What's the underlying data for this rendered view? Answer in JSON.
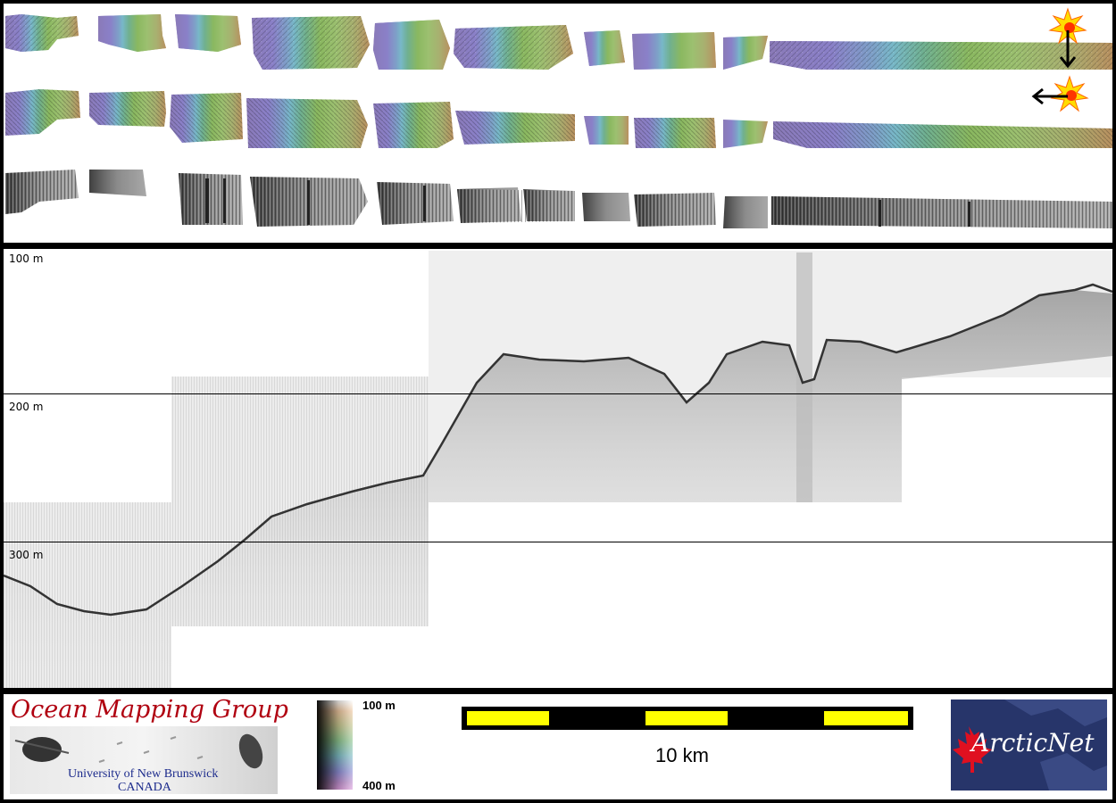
{
  "depth_axis": {
    "labels": [
      "100 m",
      "200 m",
      "300 m"
    ]
  },
  "maps": {
    "strips": [
      "shaded-relief-sun-north",
      "shaded-relief-sun-west",
      "backscatter-grayscale"
    ],
    "sun_icons": [
      "sun-arrow-down-icon",
      "sun-arrow-left-icon"
    ]
  },
  "colorbar": {
    "top_label": "100 m",
    "bottom_label": "400 m",
    "colors": [
      "#ffffff",
      "#f0c8a0",
      "#c8c890",
      "#90c890",
      "#80c0c8",
      "#9090d8",
      "#e0a0e0"
    ]
  },
  "scale": {
    "label": "10 km",
    "segments": [
      "yellow",
      "black",
      "yellow",
      "black",
      "yellow"
    ],
    "colors": {
      "yellow": "#ffff00",
      "black": "#000000"
    }
  },
  "logos": {
    "omg": {
      "title": "Ocean Mapping Group",
      "university": "University of New Brunswick",
      "country": "CANADA"
    },
    "arcticnet": {
      "text": "ArcticNet"
    }
  },
  "colors": {
    "frame": "#000000",
    "omg_title": "#b00010",
    "omg_text": "#1c2b8c",
    "arcticnet_bg": "#27356a",
    "maple_leaf": "#e01020"
  }
}
